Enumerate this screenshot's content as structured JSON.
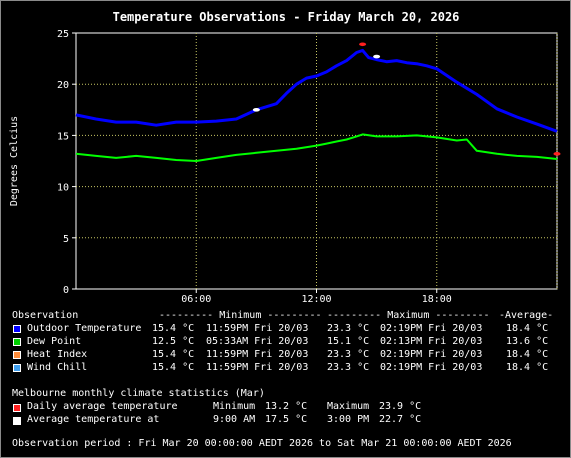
{
  "title": "Temperature Observations - Friday March 20, 2026",
  "chart_data": {
    "type": "line",
    "title": "Temperature Observations - Friday March 20, 2026",
    "ylabel": "Degrees Celcius",
    "xlabel": "",
    "x_unit": "hours since 00:00 Mar 20",
    "xlim": [
      0,
      24
    ],
    "ylim": [
      0,
      25
    ],
    "x_ticks": [
      6,
      12,
      18
    ],
    "x_tick_labels": [
      "06:00",
      "12:00",
      "18:00"
    ],
    "y_ticks": [
      0,
      5,
      10,
      15,
      20,
      25
    ],
    "y_tick_labels": [
      "0",
      "5",
      "10",
      "15",
      "20",
      "25"
    ],
    "grid": true,
    "series": [
      {
        "name": "Outdoor Temperature",
        "color": "#0000ff",
        "x": [
          0,
          1,
          2,
          3,
          4,
          5,
          6,
          7,
          8,
          9,
          10,
          10.5,
          11,
          11.5,
          12,
          12.5,
          13,
          13.5,
          14,
          14.3,
          14.6,
          15,
          15.5,
          16,
          16.5,
          17,
          17.5,
          18,
          19,
          20,
          21,
          22,
          23,
          24
        ],
        "y": [
          17.0,
          16.6,
          16.3,
          16.3,
          16.0,
          16.3,
          16.3,
          16.4,
          16.6,
          17.5,
          18.1,
          19.1,
          20.0,
          20.6,
          20.8,
          21.2,
          21.8,
          22.3,
          23.1,
          23.3,
          22.6,
          22.4,
          22.2,
          22.3,
          22.1,
          22.0,
          21.8,
          21.5,
          20.2,
          19.0,
          17.6,
          16.8,
          16.1,
          15.4
        ]
      },
      {
        "name": "Dew Point",
        "color": "#00ff00",
        "x": [
          0,
          1,
          2,
          3,
          4,
          5,
          6,
          7,
          8,
          9,
          10,
          11,
          12,
          12.5,
          13,
          13.5,
          14,
          14.3,
          15,
          16,
          17,
          18,
          19,
          19.5,
          20,
          21,
          22,
          23,
          24
        ],
        "y": [
          13.2,
          13.0,
          12.8,
          13.0,
          12.8,
          12.6,
          12.5,
          12.8,
          13.1,
          13.3,
          13.5,
          13.7,
          14.0,
          14.2,
          14.4,
          14.6,
          14.9,
          15.1,
          14.9,
          14.9,
          15.0,
          14.8,
          14.5,
          14.6,
          13.5,
          13.2,
          13.0,
          12.9,
          12.7
        ]
      },
      {
        "name": "Heat Index",
        "color": "#ff8c3a",
        "x": [],
        "y": []
      },
      {
        "name": "Wind Chill",
        "color": "#40a0f0",
        "x": [],
        "y": []
      }
    ],
    "markers": [
      {
        "name": "Daily average temperature",
        "color": "#ff2020",
        "points": [
          {
            "x": 14.3,
            "y": 23.9
          },
          {
            "x": 24,
            "y": 13.2
          }
        ]
      },
      {
        "name": "Average temperature at",
        "color": "#ffffff",
        "points": [
          {
            "x": 9.0,
            "y": 17.5
          },
          {
            "x": 15.0,
            "y": 22.7
          }
        ]
      }
    ]
  },
  "stats": {
    "header": {
      "observation": "Observation",
      "minimum": "--------- Minimum ---------",
      "maximum": "--------- Maximum ---------",
      "average": "-Average-"
    },
    "rows": [
      {
        "name": "Outdoor Temperature",
        "min": "15.4 °C",
        "min_time": "11:59PM Fri 20/03",
        "max": "23.3 °C",
        "max_time": "02:19PM Fri 20/03",
        "avg": "18.4 °C",
        "color": "#0000ff"
      },
      {
        "name": "Dew Point",
        "min": "12.5 °C",
        "min_time": "05:33AM Fri 20/03",
        "max": "15.1 °C",
        "max_time": "02:13PM Fri 20/03",
        "avg": "13.6 °C",
        "color": "#00d000"
      },
      {
        "name": "Heat Index",
        "min": "15.4 °C",
        "min_time": "11:59PM Fri 20/03",
        "max": "23.3 °C",
        "max_time": "02:19PM Fri 20/03",
        "avg": "18.4 °C",
        "color": "#ff8c3a"
      },
      {
        "name": "Wind Chill",
        "min": "15.4 °C",
        "min_time": "11:59PM Fri 20/03",
        "max": "23.3 °C",
        "max_time": "02:19PM Fri 20/03",
        "avg": "18.4 °C",
        "color": "#40a0f0"
      }
    ]
  },
  "climate": {
    "heading": "Melbourne monthly climate statistics (Mar)",
    "daily_label": "Daily average temperature",
    "daily_min_label": "Minimum",
    "daily_min": "13.2 °C",
    "daily_max_label": "Maximum",
    "daily_max": "23.9 °C",
    "daily_color": "#ff2020",
    "avg_label": "Average temperature at",
    "avg_time1": "9:00 AM",
    "avg_val1": "17.5 °C",
    "avg_time2": "3:00 PM",
    "avg_val2": "22.7 °C",
    "avg_color": "#ffffff"
  },
  "footer": "Observation period : Fri Mar 20 00:00:00 AEDT 2026 to Sat Mar 21 00:00:00 AEDT 2026"
}
